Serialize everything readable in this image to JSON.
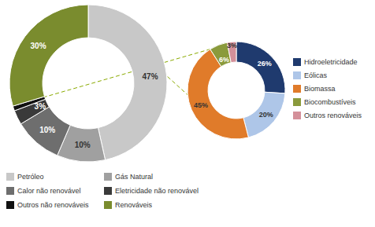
{
  "chart_data": [
    {
      "type": "pie",
      "categories": [
        "Petróleo",
        "Gás Natural",
        "Calor não renovável",
        "Eletricidade não renovável",
        "Outros não renováveis",
        "Renováveis"
      ],
      "values": [
        47,
        10,
        10,
        3,
        1,
        30
      ],
      "value_labels": [
        "47%",
        "10%",
        "10%",
        "3%",
        null,
        "30%"
      ],
      "colors": [
        "#c8c8c8",
        "#a0a0a0",
        "#6e6e6e",
        "#3a3a3a",
        "#111111",
        "#7a8c2e"
      ],
      "data_labels": true,
      "legend": "bottom"
    },
    {
      "type": "pie",
      "categories": [
        "Hidroeletricidade",
        "Eólicas",
        "Biomassa",
        "Biocombustíveis",
        "Outros renováveis"
      ],
      "values": [
        26,
        20,
        45,
        6,
        3
      ],
      "value_labels": [
        "26%",
        "20%",
        "45%",
        "6%",
        "3%"
      ],
      "colors": [
        "#1f3a6e",
        "#aec6e8",
        "#e07b2a",
        "#8a9a3c",
        "#d4909a"
      ],
      "data_labels": true,
      "legend": "right"
    }
  ]
}
